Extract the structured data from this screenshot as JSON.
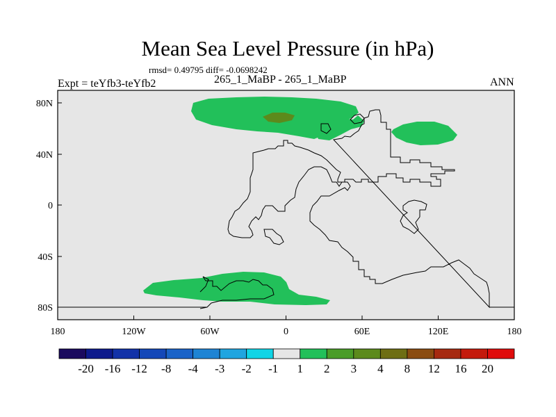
{
  "figure": {
    "title": "Mean Sea Level Pressure (in hPa)",
    "stats": "rmsd= 0.49795 diff= -0.0698242",
    "subtitle": "265_1_MaBP - 265_1_MaBP",
    "experiment": "Expt = teYfb3-teYfb2",
    "season": "ANN"
  },
  "axes": {
    "lon_labels": [
      "180",
      "120W",
      "60W",
      "0",
      "60E",
      "120E",
      "180"
    ],
    "lat_labels": [
      "80N",
      "40N",
      "0",
      "40S",
      "80S"
    ]
  },
  "colorbar": {
    "labels": [
      "-20",
      "-16",
      "-12",
      "-8",
      "-4",
      "-3",
      "-2",
      "-1",
      "1",
      "2",
      "3",
      "4",
      "8",
      "12",
      "16",
      "20"
    ],
    "colors": [
      "#1a0a5e",
      "#0d1a8c",
      "#1232a8",
      "#1448b8",
      "#1a63c8",
      "#1e84d4",
      "#20a5e0",
      "#10d4e6",
      "#e6e6e6",
      "#22c05a",
      "#4a9c28",
      "#5c8a1c",
      "#6e6e14",
      "#8a4c10",
      "#a62a10",
      "#c41a0c",
      "#e00c0c"
    ]
  },
  "map": {
    "background_color": "#e6e6e6",
    "fill_colors": {
      "bin_1_2": "#22c05a",
      "bin_3_4": "#5c8a1c"
    }
  }
}
